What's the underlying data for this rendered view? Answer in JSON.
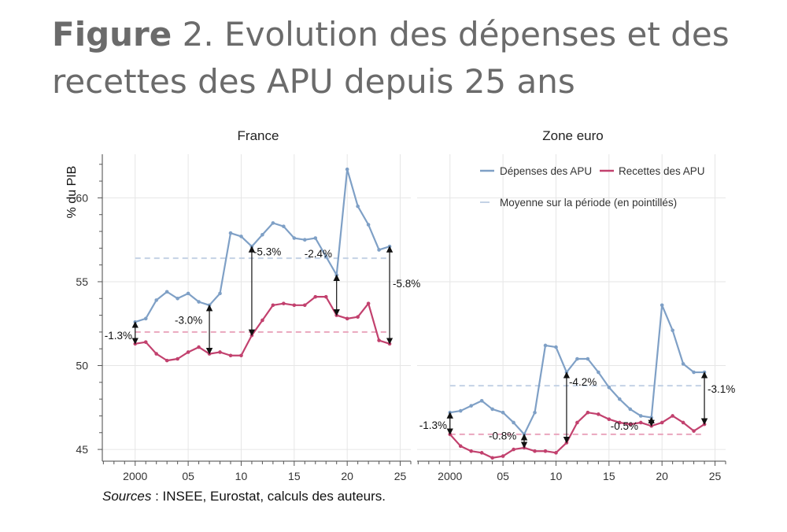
{
  "figure": {
    "label": "Figure",
    "number": "2.",
    "title": "Evolution des dépenses et des recettes des APU depuis 25 ans",
    "sources_label": "Sources",
    "sources_text": " : INSEE, Eurostat, calculs des auteurs."
  },
  "colors": {
    "depenses": "#7fa0c6",
    "recettes": "#c2416e",
    "depenses_mean": "#c4d2e5",
    "recettes_mean": "#eaa6bd",
    "grid": "#e6e6e6"
  },
  "chart_data": [
    {
      "type": "line",
      "panel": "France",
      "ylabel": "% du PIB",
      "ylim": [
        44.3,
        62.6
      ],
      "yticks": [
        45,
        50,
        55,
        60
      ],
      "xlim": [
        1996.9,
        2026
      ],
      "xticks": [
        2000,
        2005,
        2010,
        2015,
        2020,
        2025
      ],
      "xtick_labels": [
        "2000",
        "05",
        "10",
        "15",
        "20",
        "25"
      ],
      "x": [
        2000,
        2001,
        2002,
        2003,
        2004,
        2005,
        2006,
        2007,
        2008,
        2009,
        2010,
        2011,
        2012,
        2013,
        2014,
        2015,
        2016,
        2017,
        2018,
        2019,
        2020,
        2021,
        2022,
        2023,
        2024
      ],
      "series": [
        {
          "name": "Dépenses des APU",
          "values": [
            52.6,
            52.8,
            53.9,
            54.4,
            54.0,
            54.3,
            53.8,
            53.6,
            54.3,
            57.9,
            57.7,
            57.1,
            57.8,
            58.5,
            58.3,
            57.6,
            57.5,
            57.6,
            56.5,
            55.4,
            61.7,
            59.5,
            58.4,
            56.9,
            57.1
          ]
        },
        {
          "name": "Recettes des APU",
          "values": [
            51.3,
            51.4,
            50.7,
            50.3,
            50.4,
            50.8,
            51.1,
            50.7,
            50.8,
            50.6,
            50.6,
            51.8,
            52.7,
            53.6,
            53.7,
            53.6,
            53.6,
            54.1,
            54.1,
            53.0,
            52.8,
            52.9,
            53.7,
            51.5,
            51.3
          ]
        }
      ],
      "means": {
        "Dépenses des APU": 56.4,
        "Recettes des APU": 52.0
      },
      "annotations": [
        {
          "year": 2000,
          "from": 52.6,
          "to": 51.3,
          "label": "-1.3%"
        },
        {
          "year": 2007,
          "from": 53.6,
          "to": 50.7,
          "label": "-3.0%"
        },
        {
          "year": 2011,
          "from": 57.1,
          "to": 51.8,
          "label": "-5.3%"
        },
        {
          "year": 2019,
          "from": 55.4,
          "to": 53.0,
          "label": "-2.4%"
        },
        {
          "year": 2024,
          "from": 57.1,
          "to": 51.3,
          "label": "-5.8%"
        }
      ]
    },
    {
      "type": "line",
      "panel": "Zone euro",
      "ylabel": "",
      "ylim": [
        44.3,
        62.6
      ],
      "yticks": [
        45,
        50,
        55,
        60
      ],
      "xlim": [
        1996.9,
        2026
      ],
      "xticks": [
        2000,
        2005,
        2010,
        2015,
        2020,
        2025
      ],
      "xtick_labels": [
        "2000",
        "05",
        "10",
        "15",
        "20",
        "25"
      ],
      "x": [
        2000,
        2001,
        2002,
        2003,
        2004,
        2005,
        2006,
        2007,
        2008,
        2009,
        2010,
        2011,
        2012,
        2013,
        2014,
        2015,
        2016,
        2017,
        2018,
        2019,
        2020,
        2021,
        2022,
        2023,
        2024
      ],
      "series": [
        {
          "name": "Dépenses des APU",
          "values": [
            47.2,
            47.3,
            47.6,
            47.9,
            47.4,
            47.2,
            46.6,
            45.9,
            47.2,
            51.2,
            51.1,
            49.6,
            50.4,
            50.4,
            49.6,
            48.7,
            48.0,
            47.4,
            47.0,
            46.9,
            53.6,
            52.1,
            50.1,
            49.6,
            49.6
          ]
        },
        {
          "name": "Recettes des APU",
          "values": [
            45.9,
            45.2,
            44.9,
            44.8,
            44.5,
            44.6,
            45.0,
            45.1,
            44.9,
            44.9,
            44.8,
            45.4,
            46.6,
            47.2,
            47.1,
            46.8,
            46.6,
            46.5,
            46.6,
            46.4,
            46.6,
            47.0,
            46.6,
            46.1,
            46.5
          ]
        }
      ],
      "means": {
        "Dépenses des APU": 48.8,
        "Recettes des APU": 45.9
      },
      "annotations": [
        {
          "year": 2000,
          "from": 47.2,
          "to": 45.9,
          "label": "-1.3%"
        },
        {
          "year": 2007,
          "from": 45.9,
          "to": 45.1,
          "label": "-0.8%"
        },
        {
          "year": 2011,
          "from": 49.6,
          "to": 45.4,
          "label": "-4.2%"
        },
        {
          "year": 2019,
          "from": 46.9,
          "to": 46.4,
          "label": "-0.5%"
        },
        {
          "year": 2024,
          "from": 49.6,
          "to": 46.5,
          "label": "-3.1%"
        }
      ],
      "legend": {
        "position": "top-right",
        "entries": [
          "Dépenses des APU",
          "Recettes des APU"
        ],
        "mean_entry": "Moyenne sur la période (en pointillés)"
      }
    }
  ]
}
